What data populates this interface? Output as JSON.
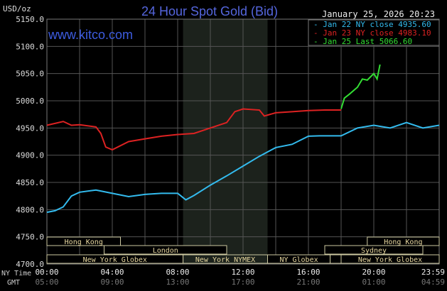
{
  "chart_data": {
    "type": "line",
    "title": "24 Hour Spot Gold (Bid)",
    "watermark": "www.kitco.com",
    "timestamp": "January 25, 2026 20:23",
    "ylabel": "USD/oz",
    "ylim": [
      4700,
      5150
    ],
    "yticks": [
      "5150.0",
      "5100.0",
      "5050.0",
      "5000.0",
      "4950.0",
      "4900.0",
      "4850.0",
      "4800.0",
      "4750.0",
      "4700.0"
    ],
    "xlim": [
      0,
      24
    ],
    "xrow1_label": "NY Time",
    "xrow2_label": "GMT",
    "xticks_ny": [
      "00:00",
      "04:00",
      "08:00",
      "12:00",
      "16:00",
      "20:00",
      "23:59"
    ],
    "xticks_gmt": [
      "05:00",
      "09:00",
      "13:00",
      "17:00",
      "21:00",
      "01:00",
      "04:59"
    ],
    "grid": true,
    "legend_position": "top-right",
    "shaded_range_hours": [
      8.33,
      13.5
    ],
    "series": [
      {
        "name": "Jan 22 NY close",
        "value_label": "4935.60",
        "color": "#33bbee",
        "x": [
          0,
          0.5,
          1,
          1.5,
          2,
          3,
          4,
          5,
          6,
          7,
          8,
          8.5,
          9,
          10,
          11,
          12,
          13,
          14,
          15,
          16,
          16.67,
          18,
          19,
          20,
          21,
          22,
          23,
          24
        ],
        "y": [
          4795,
          4798,
          4805,
          4825,
          4832,
          4836,
          4830,
          4824,
          4828,
          4830,
          4830,
          4818,
          4826,
          4845,
          4862,
          4880,
          4898,
          4914,
          4920,
          4935,
          4935.6,
          4935.6,
          4950,
          4955,
          4950,
          4960,
          4950,
          4955
        ]
      },
      {
        "name": "Jan 23 NY close",
        "value_label": "4983.10",
        "color": "#dd2222",
        "x": [
          0,
          1,
          1.5,
          2,
          3,
          3.3,
          3.6,
          4,
          5,
          6,
          7,
          8,
          9,
          10,
          11,
          11.5,
          12,
          13,
          13.3,
          14,
          15,
          16,
          17,
          17.33,
          18
        ],
        "y": [
          4955,
          4962,
          4955,
          4956,
          4952,
          4940,
          4915,
          4910,
          4925,
          4930,
          4935,
          4938,
          4940,
          4950,
          4960,
          4980,
          4985,
          4983,
          4972,
          4978,
          4980,
          4982,
          4983,
          4983.1,
          4983.1
        ]
      },
      {
        "name": "Jan 25 Last",
        "value_label": "5066.60",
        "color": "#33dd33",
        "x": [
          18,
          18.2,
          18.5,
          19,
          19.3,
          19.6,
          20,
          20.2,
          20.38
        ],
        "y": [
          4985,
          5005,
          5012,
          5025,
          5040,
          5038,
          5050,
          5040,
          5066.6
        ]
      }
    ],
    "sessions": [
      {
        "name": "Hong Kong",
        "row": 0,
        "start": 0,
        "end": 4.5
      },
      {
        "name": "Hong Kong",
        "row": 0,
        "start": 19.6,
        "end": 24
      },
      {
        "name": "London",
        "row": 1,
        "start": 3.5,
        "end": 11
      },
      {
        "name": "Sydney",
        "row": 1,
        "start": 17,
        "end": 23
      },
      {
        "name": "New York Globex",
        "row": 2,
        "start": 0,
        "end": 8.33
      },
      {
        "name": "New York NYMEX",
        "row": 2,
        "start": 8.33,
        "end": 13.5
      },
      {
        "name": "NY Globex",
        "row": 2,
        "start": 13.5,
        "end": 17.33
      },
      {
        "name": "",
        "row": 2,
        "start": 17.33,
        "end": 18
      },
      {
        "name": "New York Globex",
        "row": 2,
        "start": 18,
        "end": 24
      }
    ]
  }
}
